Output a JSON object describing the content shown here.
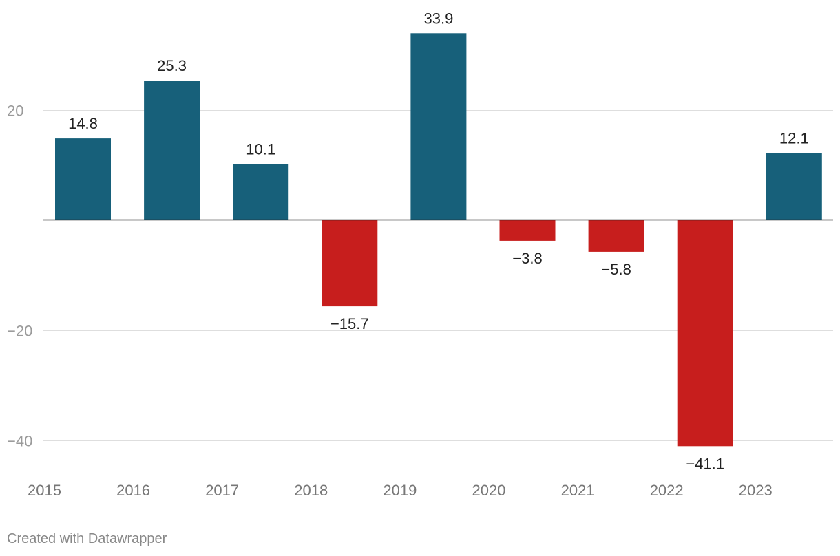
{
  "chart_data": {
    "type": "bar",
    "title": "",
    "xlabel": "",
    "ylabel": "",
    "categories": [
      "2015",
      "2016",
      "2017",
      "2018",
      "2019",
      "2020",
      "2021",
      "2022",
      "2023"
    ],
    "values": [
      14.8,
      25.3,
      10.1,
      -15.7,
      33.9,
      -3.8,
      -5.8,
      -41.1,
      12.1
    ],
    "labels": [
      "14.8",
      "25.3",
      "10.1",
      "−15.7",
      "33.9",
      "−3.8",
      "−5.8",
      "−41.1",
      "12.1"
    ],
    "yticks": [
      20,
      -20,
      -40
    ],
    "ytick_labels": [
      "20",
      "−20",
      "−40"
    ],
    "ylim": [
      -46,
      40
    ],
    "grid": true,
    "colors": {
      "positive": "#17607a",
      "negative": "#c71e1d"
    }
  },
  "footer": {
    "credit": "Created with Datawrapper"
  }
}
